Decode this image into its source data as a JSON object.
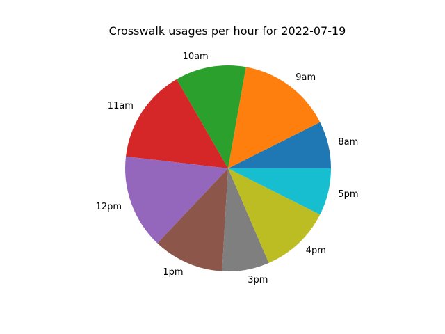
{
  "chart_data": {
    "type": "pie",
    "title": "Crosswalk usages per hour for 2022-07-19",
    "categories": [
      "8am",
      "9am",
      "10am",
      "11am",
      "12pm",
      "1pm",
      "3pm",
      "4pm",
      "5pm"
    ],
    "values": [
      2,
      4,
      3,
      4,
      4,
      3,
      2,
      3,
      2
    ],
    "colors": [
      "#1f77b4",
      "#ff7f0e",
      "#2ca02c",
      "#d62728",
      "#9467bd",
      "#8c564b",
      "#7f7f7f",
      "#bcbd22",
      "#17becf"
    ],
    "start_angle_deg": 0,
    "direction": "counterclockwise",
    "legend": "none"
  }
}
